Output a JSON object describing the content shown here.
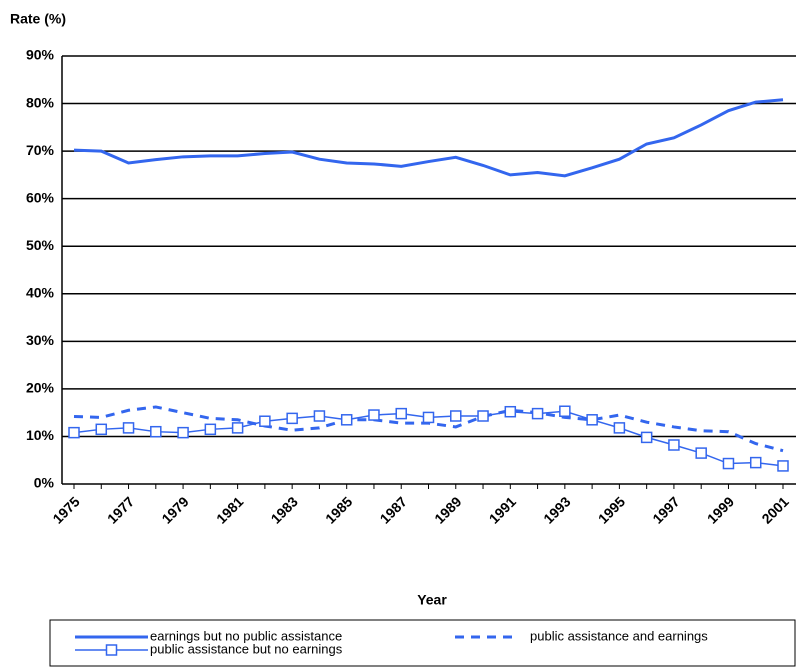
{
  "chart_data": {
    "type": "line",
    "y_label": "Rate (%)",
    "x_label": "Year",
    "categories": [
      "1975",
      null,
      "1977",
      null,
      "1979",
      null,
      "1981",
      null,
      "1983",
      null,
      "1985",
      null,
      "1987",
      null,
      "1989",
      null,
      "1991",
      null,
      "1993",
      null,
      "1995",
      null,
      "1997",
      null,
      "1999",
      null,
      "2001"
    ],
    "ylim": [
      0,
      90
    ],
    "yticks": [
      {
        "value": 0,
        "label": "0%"
      },
      {
        "value": 10,
        "label": "10%"
      },
      {
        "value": 20,
        "label": "20%"
      },
      {
        "value": 30,
        "label": "30%"
      },
      {
        "value": 40,
        "label": "40%"
      },
      {
        "value": 50,
        "label": "50%"
      },
      {
        "value": 60,
        "label": "60%"
      },
      {
        "value": 70,
        "label": "70%"
      },
      {
        "value": 80,
        "label": "80%"
      },
      {
        "value": 90,
        "label": "90%"
      }
    ],
    "grid": true,
    "legend": "bottom",
    "series": [
      {
        "name": "earnings but no public assistance",
        "color": "#3366ee",
        "dash": false,
        "marker": "none",
        "values": [
          70.2,
          70.0,
          67.5,
          68.2,
          68.8,
          69.0,
          69.0,
          69.5,
          69.8,
          68.3,
          67.5,
          67.3,
          66.8,
          67.8,
          68.7,
          67.0,
          65.0,
          65.5,
          64.8,
          66.5,
          68.3,
          71.5,
          72.8,
          75.5,
          78.5,
          80.3,
          80.8
        ]
      },
      {
        "name": "public assistance and earnings",
        "color": "#3366ee",
        "dash": true,
        "marker": "none",
        "values": [
          14.2,
          14.0,
          15.5,
          16.2,
          15.0,
          13.8,
          13.5,
          12.2,
          11.3,
          11.8,
          13.5,
          13.5,
          12.8,
          12.8,
          12.0,
          14.2,
          15.5,
          15.0,
          14.0,
          13.5,
          14.5,
          13.0,
          12.0,
          11.2,
          11.0,
          8.5,
          7.0
        ]
      },
      {
        "name": "public assistance but no earnings",
        "color": "#3366ee",
        "dash": false,
        "marker": "square",
        "values": [
          10.8,
          11.5,
          11.8,
          11.0,
          10.8,
          11.5,
          11.8,
          13.2,
          13.8,
          14.3,
          13.5,
          14.5,
          14.8,
          14.0,
          14.3,
          14.3,
          15.2,
          14.8,
          15.3,
          13.5,
          11.8,
          9.8,
          8.2,
          6.5,
          4.3,
          4.5,
          3.8
        ]
      }
    ]
  }
}
